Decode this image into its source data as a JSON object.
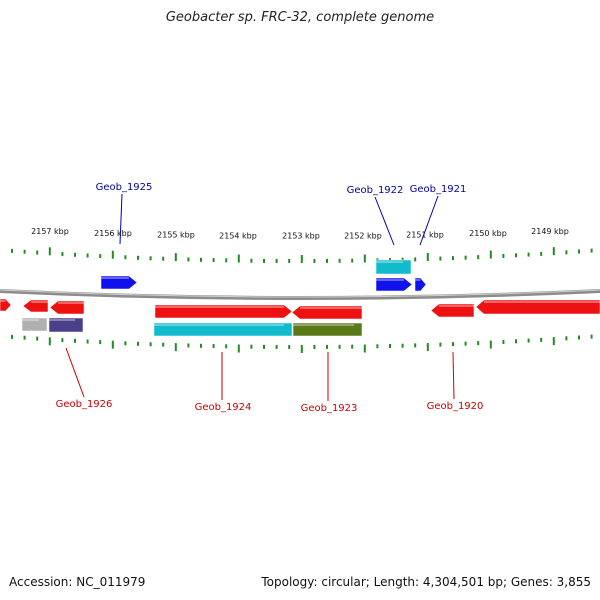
{
  "title": "Geobacter sp. FRC-32, complete genome",
  "footer": {
    "accession": "Accession: NC_011979",
    "summary": "Topology: circular; Length: 4,304,501 bp; Genes: 3,855"
  },
  "colors": {
    "backbone": "#8c8c8c",
    "ticks": "#228B22",
    "label_top": "#0000aa",
    "label_bottom": "#cc0000",
    "red": "#ee1111",
    "blue": "#1111ee",
    "cyan": "#11bbcc",
    "olive": "#5a7a1a",
    "gray": "#b0b0b0",
    "navy": "#4a3f8a"
  },
  "kbp_labels": [
    "2157 kbp",
    "2156 kbp",
    "2155 kbp",
    "2154 kbp",
    "2153 kbp",
    "2152 kbp",
    "2151 kbp",
    "2150 kbp",
    "2149 kbp"
  ],
  "gene_labels_top": [
    "Geob_1925",
    "Geob_1922",
    "Geob_1921"
  ],
  "gene_labels_bottom": [
    "Geob_1926",
    "Geob_1924",
    "Geob_1923",
    "Geob_1920"
  ]
}
